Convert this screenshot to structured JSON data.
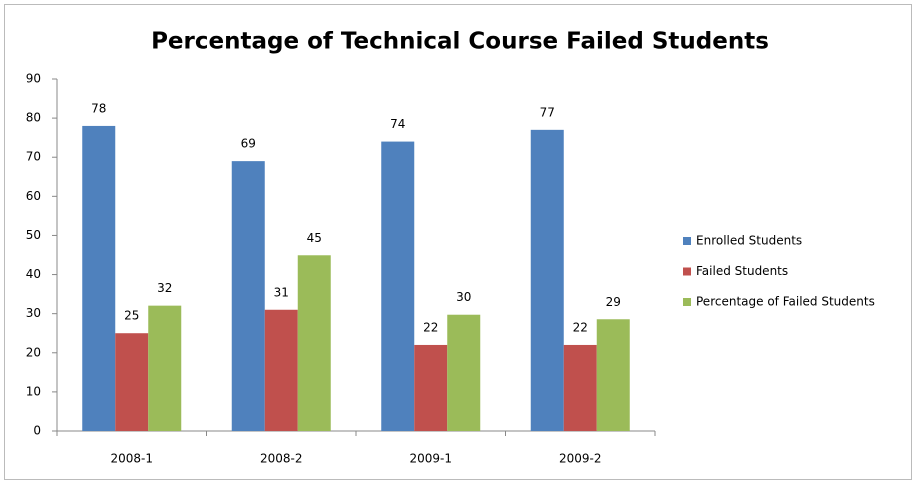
{
  "chart_data": {
    "type": "bar",
    "title": "Percentage of Technical Course Failed Students",
    "categories": [
      "2008-1",
      "2008-2",
      "2009-1",
      "2009-2"
    ],
    "series": [
      {
        "name": "Enrolled Students",
        "color": "#4f81bd",
        "values": [
          78,
          69,
          74,
          77
        ]
      },
      {
        "name": "Failed Students",
        "color": "#c0504d",
        "values": [
          25,
          31,
          22,
          22
        ]
      },
      {
        "name": "Percentage of Failed Students",
        "color": "#9bbb59",
        "values": [
          32.05,
          44.93,
          29.73,
          28.57
        ],
        "value_labels": [
          "32",
          "45",
          "30",
          "29"
        ]
      }
    ],
    "ylim": [
      0,
      90
    ],
    "yticks": [
      0,
      10,
      20,
      30,
      40,
      50,
      60,
      70,
      80,
      90
    ],
    "grid": false,
    "legend": "right"
  }
}
